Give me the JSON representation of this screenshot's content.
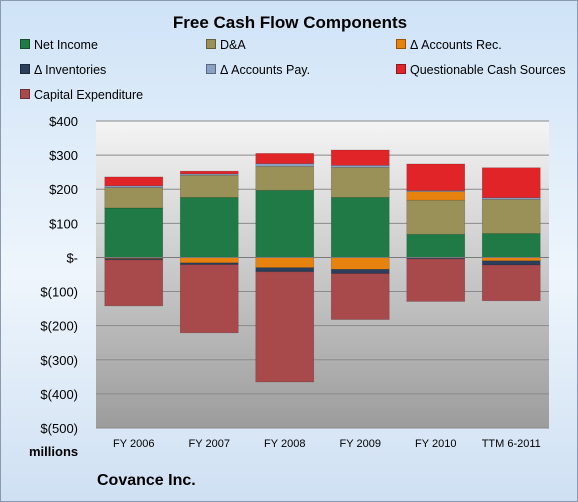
{
  "chart_data": {
    "type": "bar",
    "stacked": true,
    "title": "Free Cash Flow Components",
    "categories": [
      "FY 2006",
      "FY 2007",
      "FY 2008",
      "FY 2009",
      "FY 2010",
      "TTM 6-2011"
    ],
    "ylim": [
      -500,
      400
    ],
    "yticks": [
      400,
      300,
      200,
      100,
      0,
      -100,
      -200,
      -300,
      -400,
      -500
    ],
    "ytick_labels": [
      "$400",
      "$300",
      "$200",
      "$100",
      "$-",
      "$(100)",
      "$(200)",
      "$(300)",
      "$(400)",
      "$(500)"
    ],
    "units_label": "millions",
    "company": "Covance Inc.",
    "grid": true,
    "legend_position": "top",
    "series": [
      {
        "name": "Net Income",
        "color": "#1f7a45",
        "values": [
          145,
          176,
          197,
          176,
          68,
          70
        ]
      },
      {
        "name": "D&A",
        "color": "#9a9158",
        "values": [
          60,
          65,
          70,
          88,
          100,
          100
        ]
      },
      {
        "name": "Δ Accounts Rec.",
        "color": "#e8820f",
        "values": [
          -3,
          -16,
          -30,
          -35,
          25,
          -10
        ]
      },
      {
        "name": "Δ Inventories",
        "color": "#2b3f5c",
        "values": [
          -4,
          -5,
          -12,
          -12,
          -4,
          -12
        ]
      },
      {
        "name": "Δ Accounts Pay.",
        "color": "#8aa0c4",
        "values": [
          5,
          4,
          8,
          6,
          3,
          5
        ]
      },
      {
        "name": "Questionable Cash Sources",
        "color": "#e02427",
        "values": [
          26,
          8,
          30,
          45,
          78,
          88
        ]
      },
      {
        "name": "Capital Expenditure",
        "color": "#a8494c",
        "values": [
          -135,
          -200,
          -323,
          -135,
          -125,
          -105
        ]
      }
    ]
  }
}
